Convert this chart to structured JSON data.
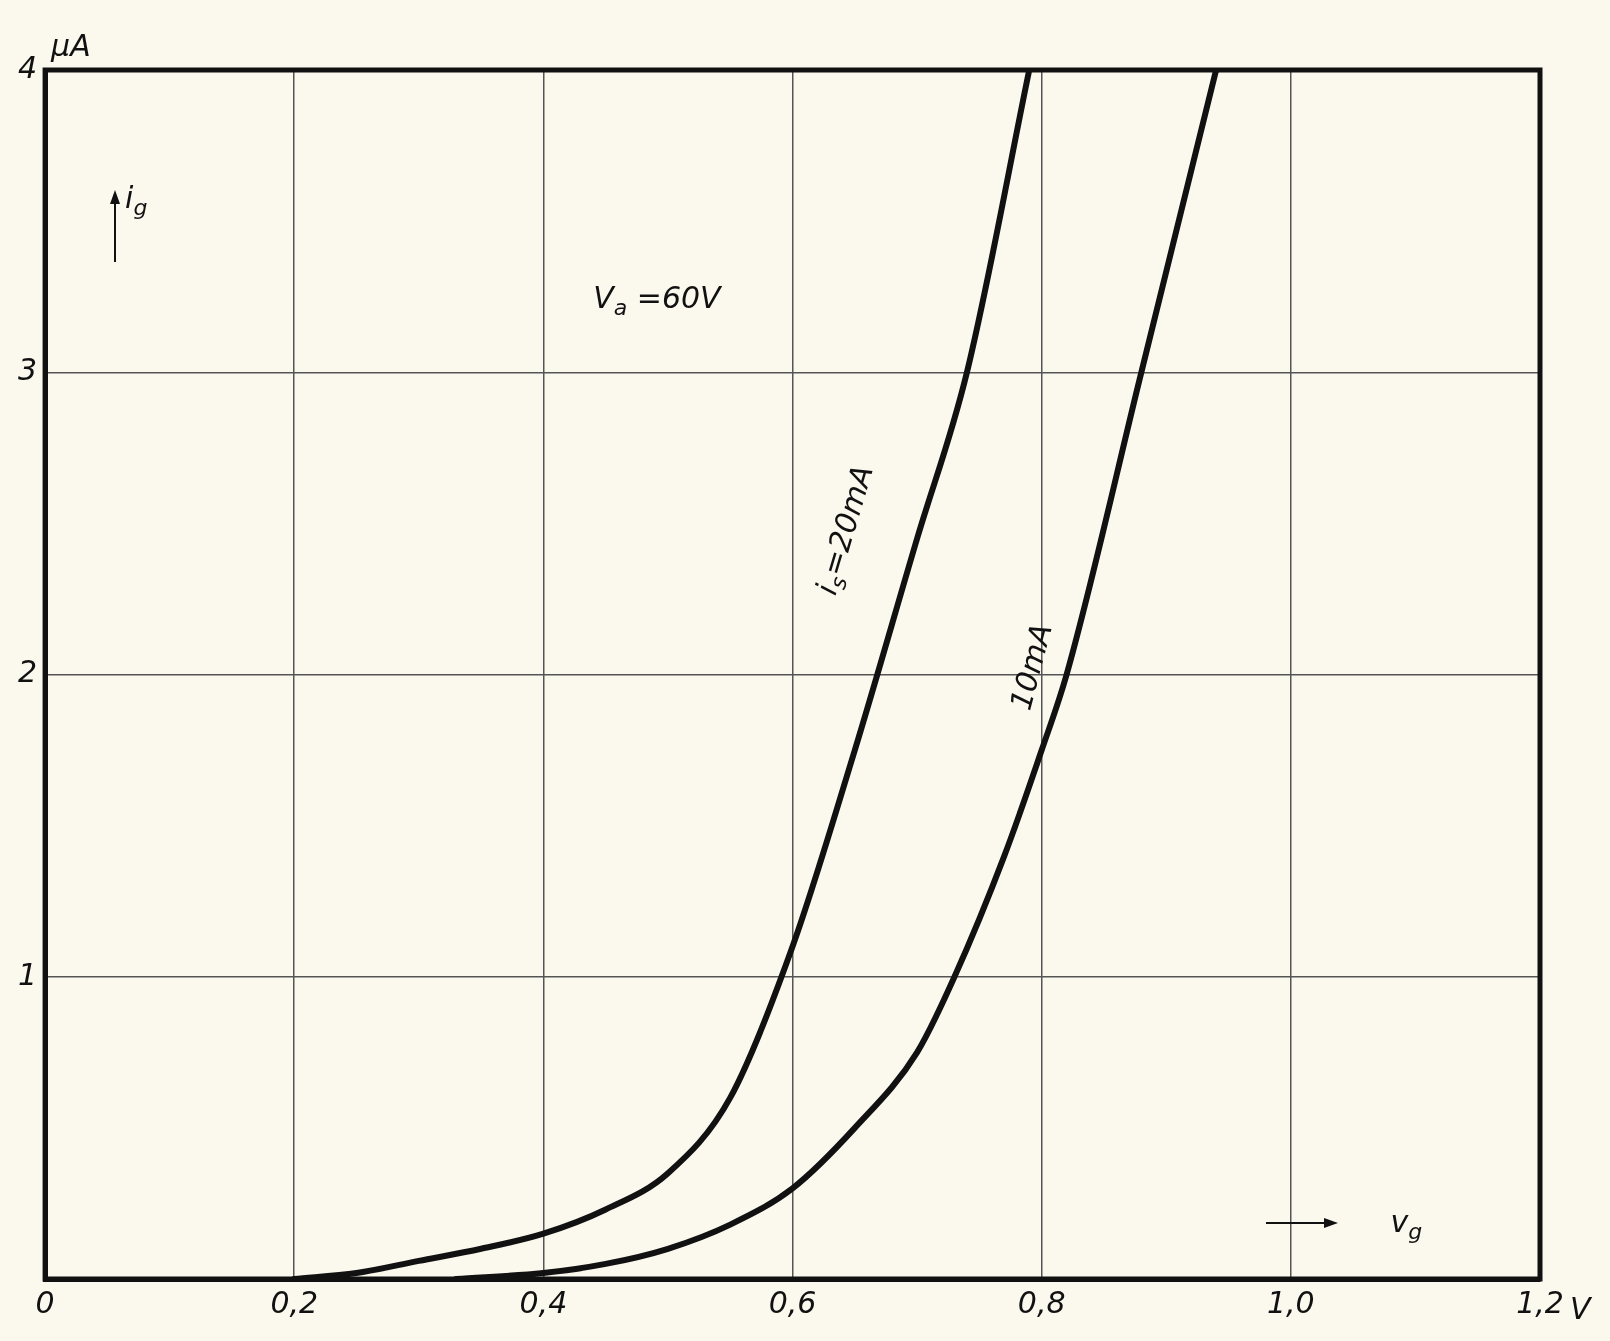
{
  "chart_data": {
    "type": "line",
    "ylabel": "µA",
    "xlabel": "V",
    "annotations": [
      "i$_{g}$",
      "v$_{g}$",
      "V$_{a}$ =60V"
    ],
    "xlim": [
      0,
      1.2
    ],
    "ylim": [
      0,
      4
    ],
    "xticks": [
      0,
      {
        "value": 0.2,
        "label": "0,2"
      },
      {
        "value": 0.4,
        "label": "0,4"
      },
      {
        "value": 0.6,
        "label": "0,6"
      },
      {
        "value": 0.8,
        "label": "0,8"
      },
      {
        "value": 1.0,
        "label": "1,0"
      },
      {
        "value": 1.2,
        "label": "1,2"
      }
    ],
    "yticks": [
      {
        "value": 0,
        "label": null
      },
      1,
      2,
      3,
      4
    ],
    "grid": true,
    "legend": false,
    "marker": "none",
    "line_style": "solid",
    "series": [
      {
        "name": "i$_{s}$=20mA",
        "color": "#111111",
        "x": [
          0.2,
          0.25,
          0.3,
          0.35,
          0.4,
          0.45,
          0.5,
          0.55,
          0.6,
          0.65,
          0.7,
          0.74,
          0.79
        ],
        "values": [
          0,
          0.02,
          0.06,
          0.1,
          0.15,
          0.23,
          0.35,
          0.6,
          1.1,
          1.75,
          2.45,
          3.0,
          4.0
        ]
      },
      {
        "name": "10mA",
        "color": "#111111",
        "x": [
          0.33,
          0.4,
          0.45,
          0.5,
          0.55,
          0.6,
          0.65,
          0.7,
          0.73,
          0.77,
          0.8,
          0.82,
          0.88,
          0.94
        ],
        "values": [
          0,
          0.02,
          0.05,
          0.1,
          0.18,
          0.3,
          0.5,
          0.75,
          1.0,
          1.4,
          1.75,
          2.0,
          3.0,
          4.0
        ]
      }
    ]
  }
}
